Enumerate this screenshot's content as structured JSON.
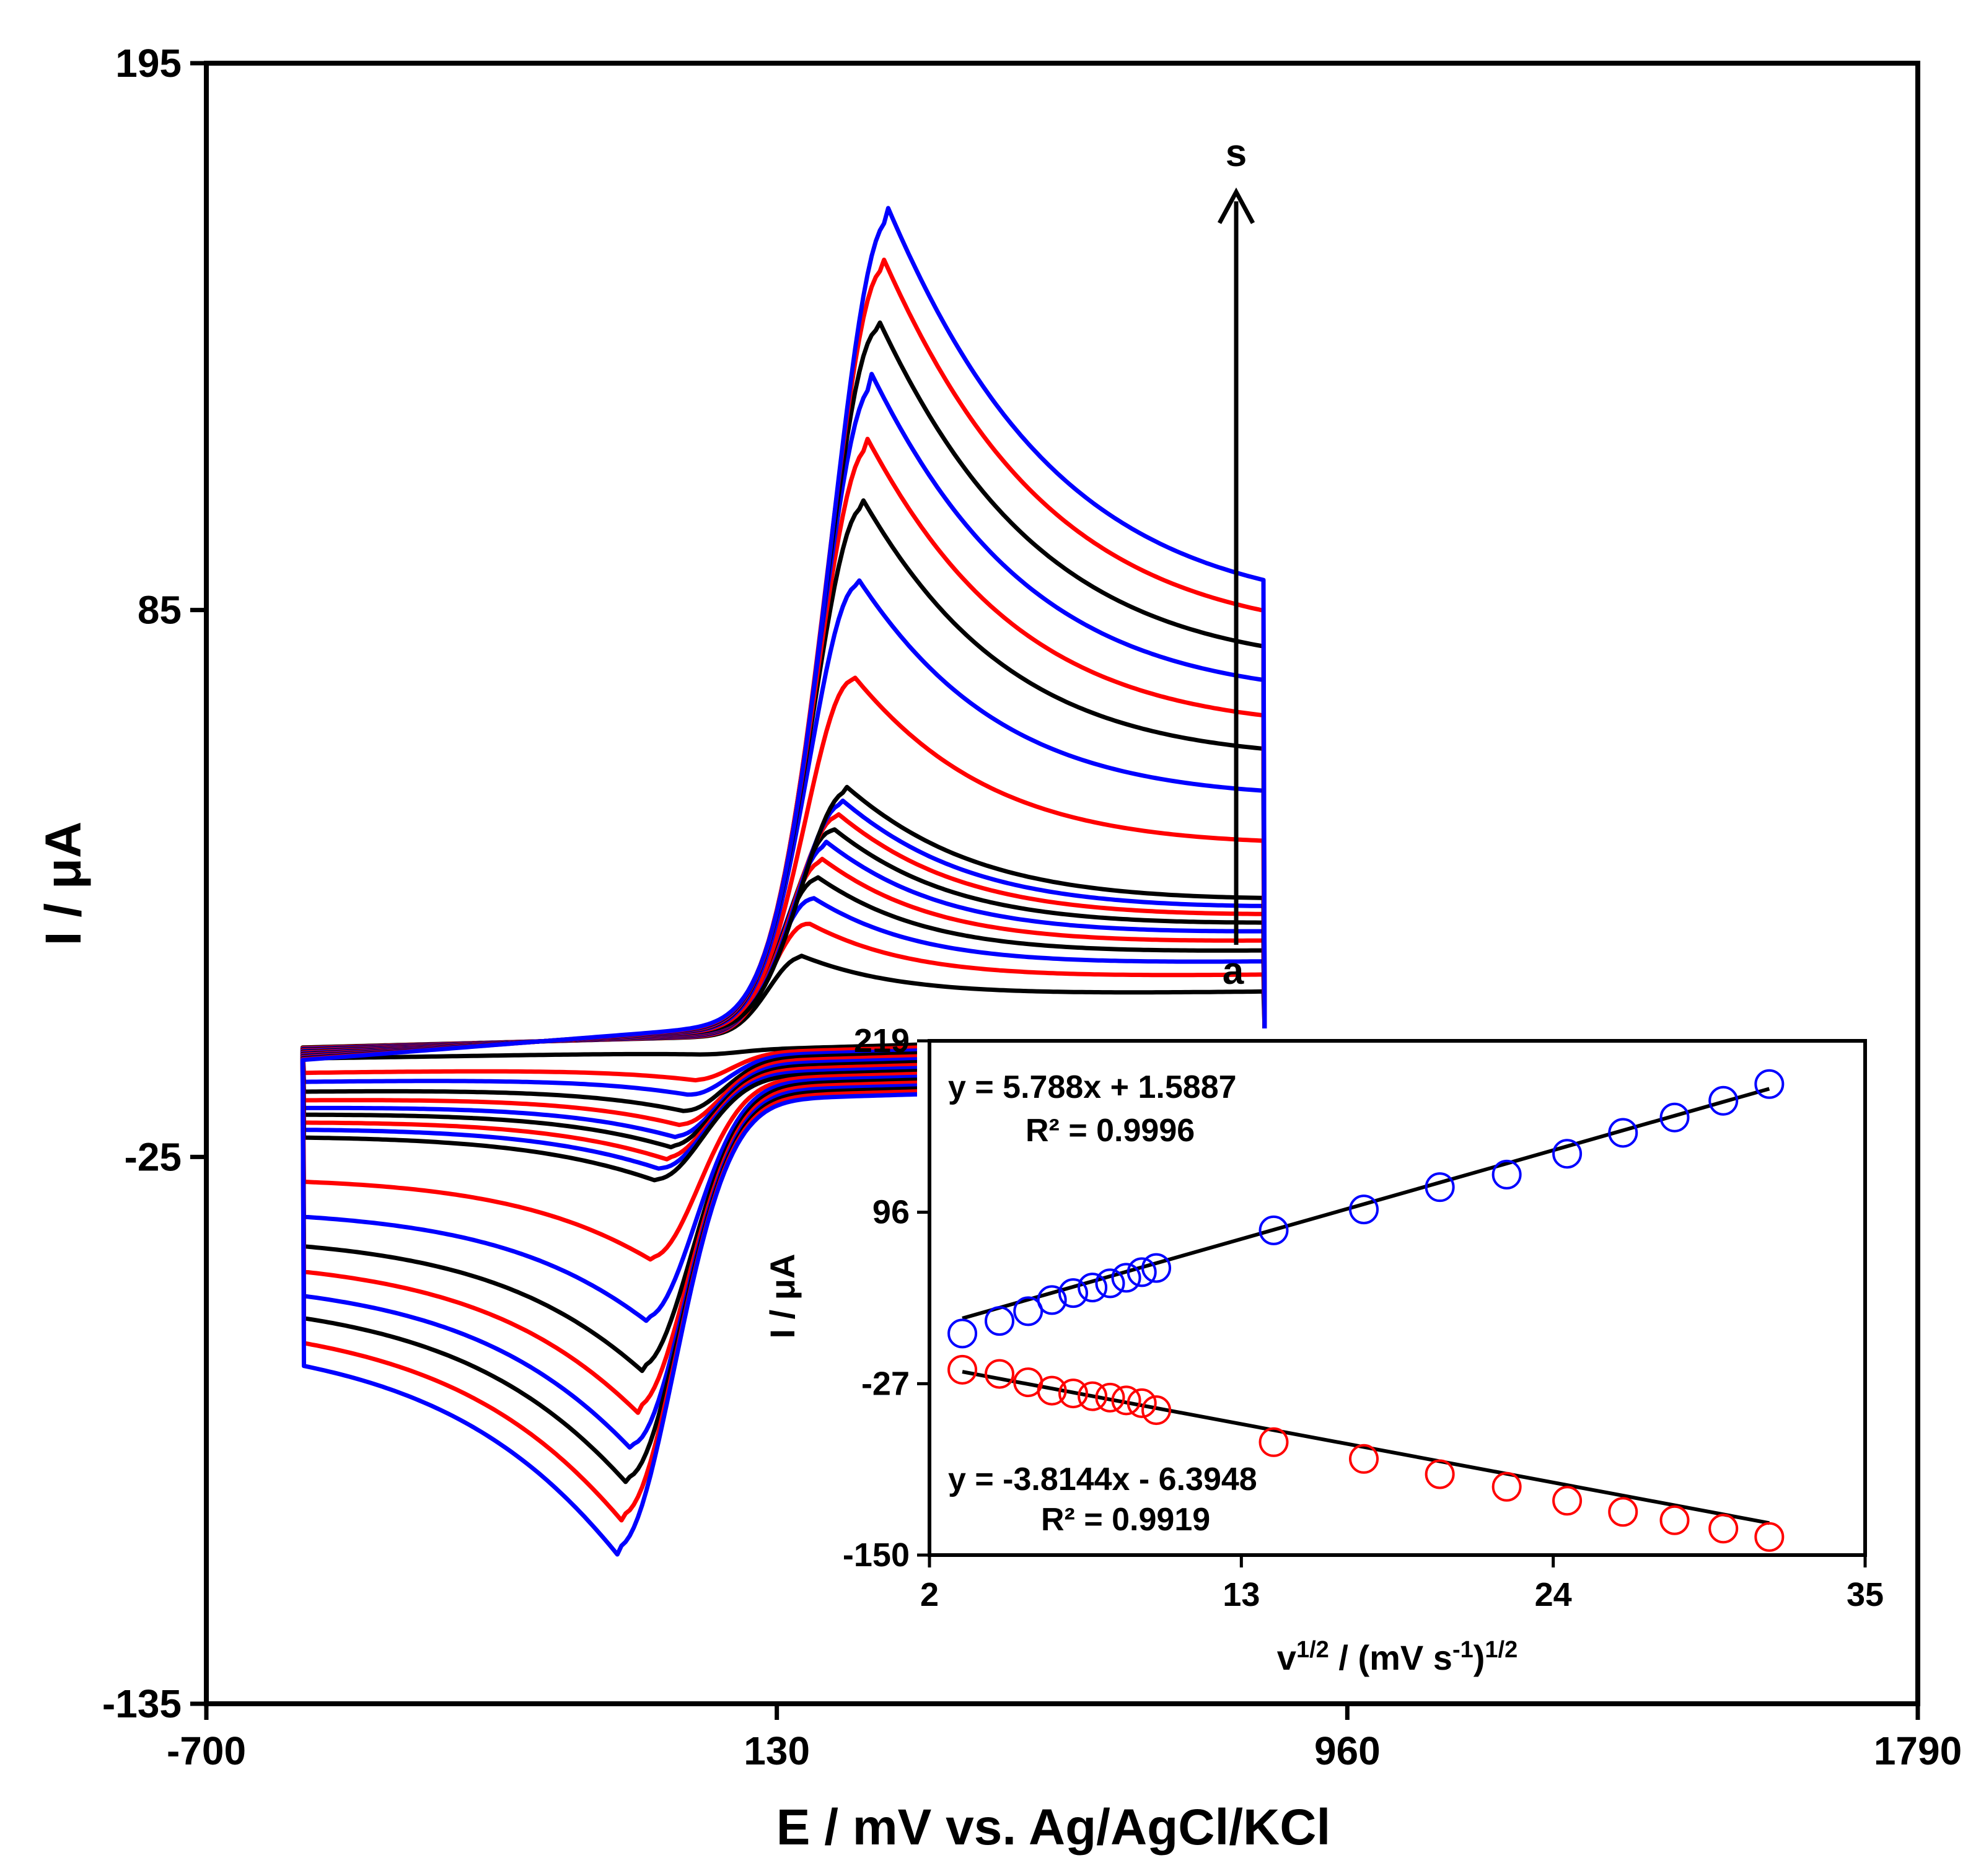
{
  "chart_data": [
    {
      "type": "line",
      "title": "",
      "xlabel": "E / mV vs. Ag/AgCl/KCl",
      "ylabel": "I / μA",
      "xlim": [
        -700,
        1790
      ],
      "ylim": [
        -135,
        195
      ],
      "xticks": [
        -700,
        130,
        960,
        1790
      ],
      "yticks": [
        -135,
        -25,
        85,
        195
      ],
      "annotations": {
        "top_label": "s",
        "bottom_label": "a"
      },
      "colors": [
        "#000000",
        "#ff0000",
        "#0000ff"
      ],
      "curve_colors": [
        "black",
        "red",
        "blue",
        "black",
        "red",
        "blue",
        "black",
        "red",
        "blue",
        "black",
        "red",
        "blue",
        "black",
        "red",
        "blue",
        "black",
        "red",
        "blue"
      ],
      "series_note": "18 cyclic voltammograms at increasing scan rates (a to s)",
      "peaks": {
        "anodic_potential_start": 165,
        "anodic_potential_end": 290,
        "cathodic_potential_start": 20,
        "cathodic_potential_end": -100,
        "anodic_peak_currents": [
          15.5,
          22.3,
          27.4,
          31.5,
          35.1,
          38.4,
          41.4,
          44.3,
          46.9,
          49.5,
          72.3,
          91.8,
          107.7,
          119.8,
          132.5,
          144.2,
          156.5,
          166.5
        ],
        "cathodic_peak_currents": [
          -4.4,
          -9.6,
          -12.6,
          -15.9,
          -18.7,
          -21.1,
          -23.1,
          -25.5,
          -27.6,
          -29.9,
          -45.9,
          -58.2,
          -68.2,
          -76.5,
          -84.2,
          -91.0,
          -98.6,
          -105.3
        ],
        "switch_potential_high": 840,
        "switch_potential_low": -560
      }
    },
    {
      "type": "scatter",
      "title": "",
      "xlabel": "v",
      "xlabel_sup1": "1/2",
      "xlabel_mid": " / (mV  s",
      "xlabel_sup2": "-1",
      "xlabel_end": ")",
      "xlabel_sup3": "1/2",
      "ylabel": "I / μA",
      "xlim": [
        2,
        35
      ],
      "ylim": [
        -150,
        219
      ],
      "xticks": [
        2,
        13,
        24,
        35
      ],
      "yticks": [
        -150,
        -27,
        96,
        219
      ],
      "x": [
        3.16,
        4.47,
        5.48,
        6.32,
        7.07,
        7.75,
        8.37,
        8.94,
        9.49,
        10.0,
        14.14,
        17.32,
        20.0,
        22.36,
        24.49,
        26.46,
        28.28,
        30.0,
        31.62
      ],
      "series": [
        {
          "name": "anodic",
          "color": "#0000ff",
          "values": [
            9,
            18,
            25,
            33,
            38,
            42,
            45,
            49,
            53,
            56,
            83,
            98,
            114,
            123,
            138,
            153,
            164,
            176,
            188
          ],
          "fit": {
            "slope": 5.788,
            "intercept": 1.5887,
            "equation": "y = 5.788x + 1.5887",
            "r2": "R² = 0.9996"
          }
        },
        {
          "name": "cathodic",
          "color": "#ff0000",
          "values": [
            -17,
            -20,
            -26,
            -32,
            -34,
            -36,
            -37,
            -39,
            -41,
            -46,
            -69,
            -81,
            -92,
            -101,
            -111,
            -119,
            -125,
            -131,
            -137
          ],
          "fit": {
            "slope": -3.8144,
            "intercept": -6.3948,
            "equation": "y = -3.8144x  - 6.3948",
            "r2": "R² = 0.9919"
          }
        }
      ]
    }
  ]
}
